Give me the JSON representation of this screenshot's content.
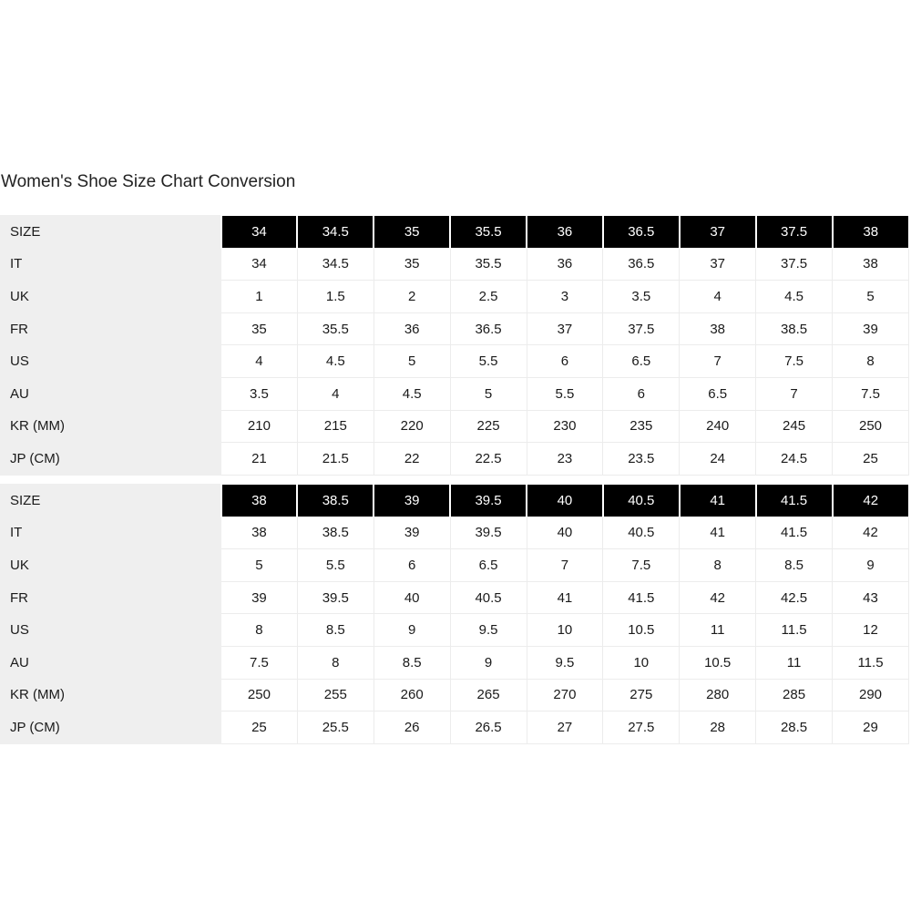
{
  "title": "Women's Shoe Size Chart Conversion",
  "tables": [
    {
      "rows": [
        {
          "label": "SIZE",
          "values": [
            "34",
            "34.5",
            "35",
            "35.5",
            "36",
            "36.5",
            "37",
            "37.5",
            "38"
          ]
        },
        {
          "label": "IT",
          "values": [
            "34",
            "34.5",
            "35",
            "35.5",
            "36",
            "36.5",
            "37",
            "37.5",
            "38"
          ]
        },
        {
          "label": "UK",
          "values": [
            "1",
            "1.5",
            "2",
            "2.5",
            "3",
            "3.5",
            "4",
            "4.5",
            "5"
          ]
        },
        {
          "label": "FR",
          "values": [
            "35",
            "35.5",
            "36",
            "36.5",
            "37",
            "37.5",
            "38",
            "38.5",
            "39"
          ]
        },
        {
          "label": "US",
          "values": [
            "4",
            "4.5",
            "5",
            "5.5",
            "6",
            "6.5",
            "7",
            "7.5",
            "8"
          ]
        },
        {
          "label": "AU",
          "values": [
            "3.5",
            "4",
            "4.5",
            "5",
            "5.5",
            "6",
            "6.5",
            "7",
            "7.5"
          ]
        },
        {
          "label": "KR (MM)",
          "values": [
            "210",
            "215",
            "220",
            "225",
            "230",
            "235",
            "240",
            "245",
            "250"
          ]
        },
        {
          "label": "JP (CM)",
          "values": [
            "21",
            "21.5",
            "22",
            "22.5",
            "23",
            "23.5",
            "24",
            "24.5",
            "25"
          ]
        }
      ]
    },
    {
      "rows": [
        {
          "label": "SIZE",
          "values": [
            "38",
            "38.5",
            "39",
            "39.5",
            "40",
            "40.5",
            "41",
            "41.5",
            "42"
          ]
        },
        {
          "label": "IT",
          "values": [
            "38",
            "38.5",
            "39",
            "39.5",
            "40",
            "40.5",
            "41",
            "41.5",
            "42"
          ]
        },
        {
          "label": "UK",
          "values": [
            "5",
            "5.5",
            "6",
            "6.5",
            "7",
            "7.5",
            "8",
            "8.5",
            "9"
          ]
        },
        {
          "label": "FR",
          "values": [
            "39",
            "39.5",
            "40",
            "40.5",
            "41",
            "41.5",
            "42",
            "42.5",
            "43"
          ]
        },
        {
          "label": "US",
          "values": [
            "8",
            "8.5",
            "9",
            "9.5",
            "10",
            "10.5",
            "11",
            "11.5",
            "12"
          ]
        },
        {
          "label": "AU",
          "values": [
            "7.5",
            "8",
            "8.5",
            "9",
            "9.5",
            "10",
            "10.5",
            "11",
            "11.5"
          ]
        },
        {
          "label": "KR (MM)",
          "values": [
            "250",
            "255",
            "260",
            "265",
            "270",
            "275",
            "280",
            "285",
            "290"
          ]
        },
        {
          "label": "JP (CM)",
          "values": [
            "25",
            "25.5",
            "26",
            "26.5",
            "27",
            "27.5",
            "28",
            "28.5",
            "29"
          ]
        }
      ]
    }
  ]
}
